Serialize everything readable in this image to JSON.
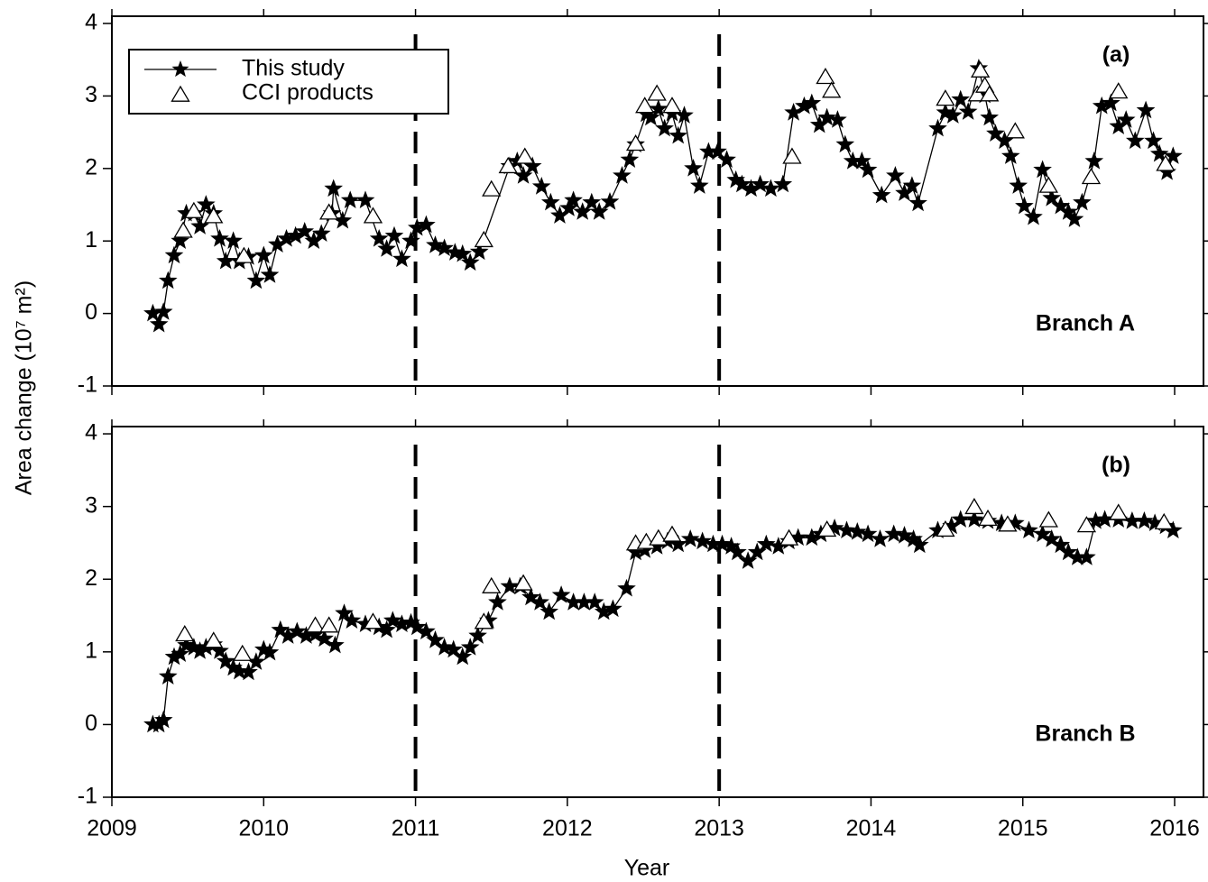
{
  "chart_data": [
    {
      "type": "line",
      "panel_label": "(a)",
      "annotation": "Branch A",
      "ylabel": "Area change (10⁷ m²)",
      "xlim": [
        2009,
        2016.19
      ],
      "xticks": [
        2009,
        2010,
        2011,
        2012,
        2013,
        2014,
        2015,
        2016
      ],
      "ylim": [
        -1,
        4.1
      ],
      "yticks": [
        -1,
        0,
        1,
        2,
        3,
        4
      ],
      "vlines": [
        2011,
        2013
      ],
      "legend": "upper left",
      "series": [
        {
          "name": "This study",
          "color": "#000000",
          "marker": "star",
          "linestyle": "solid",
          "x": [
            2009.27,
            2009.31,
            2009.34,
            2009.37,
            2009.41,
            2009.45,
            2009.49,
            2009.54,
            2009.58,
            2009.62,
            2009.67,
            2009.71,
            2009.75,
            2009.8,
            2009.84,
            2009.9,
            2009.95,
            2010.0,
            2010.04,
            2010.09,
            2010.15,
            2010.21,
            2010.27,
            2010.33,
            2010.38,
            2010.45,
            2010.46,
            2010.52,
            2010.57,
            2010.67,
            2010.76,
            2010.81,
            2010.86,
            2010.91,
            2010.97,
            2011.01,
            2011.07,
            2011.13,
            2011.19,
            2011.26,
            2011.31,
            2011.36,
            2011.42,
            2011.62,
            2011.67,
            2011.71,
            2011.77,
            2011.83,
            2011.89,
            2011.95,
            2012.01,
            2012.04,
            2012.1,
            2012.16,
            2012.21,
            2012.28,
            2012.36,
            2012.41,
            2012.45,
            2012.52,
            2012.55,
            2012.6,
            2012.64,
            2012.69,
            2012.73,
            2012.77,
            2012.83,
            2012.87,
            2012.93,
            2012.99,
            2013.05,
            2013.11,
            2013.15,
            2013.21,
            2013.27,
            2013.34,
            2013.42,
            2013.49,
            2013.56,
            2013.61,
            2013.66,
            2013.71,
            2013.78,
            2013.83,
            2013.88,
            2013.94,
            2013.98,
            2014.07,
            2014.16,
            2014.22,
            2014.27,
            2014.31,
            2014.44,
            2014.49,
            2014.54,
            2014.59,
            2014.64,
            2014.71,
            2014.75,
            2014.78,
            2014.82,
            2014.88,
            2014.92,
            2014.97,
            2015.01,
            2015.07,
            2015.13,
            2015.19,
            2015.25,
            2015.3,
            2015.34,
            2015.39,
            2015.47,
            2015.52,
            2015.58,
            2015.63,
            2015.68,
            2015.74,
            2015.81,
            2015.86,
            2015.9,
            2015.95,
            2015.99
          ],
          "values": [
            0,
            -0.15,
            0.02,
            0.45,
            0.8,
            1.0,
            1.38,
            1.38,
            1.2,
            1.5,
            1.38,
            1.03,
            0.72,
            1.0,
            0.72,
            0.78,
            0.45,
            0.8,
            0.53,
            0.95,
            1.03,
            1.07,
            1.13,
            1.0,
            1.1,
            1.38,
            1.72,
            1.28,
            1.56,
            1.56,
            1.03,
            0.89,
            1.07,
            0.75,
            1.0,
            1.18,
            1.22,
            0.94,
            0.9,
            0.84,
            0.82,
            0.7,
            0.85,
            2.03,
            2.1,
            1.9,
            2.03,
            1.75,
            1.53,
            1.35,
            1.45,
            1.56,
            1.4,
            1.53,
            1.4,
            1.54,
            1.9,
            2.12,
            2.33,
            2.75,
            2.7,
            2.82,
            2.55,
            2.76,
            2.45,
            2.73,
            2.0,
            1.76,
            2.23,
            2.23,
            2.12,
            1.84,
            1.78,
            1.72,
            1.78,
            1.72,
            1.78,
            2.77,
            2.86,
            2.9,
            2.6,
            2.7,
            2.67,
            2.33,
            2.1,
            2.1,
            1.98,
            1.63,
            1.9,
            1.66,
            1.76,
            1.52,
            2.55,
            2.77,
            2.73,
            2.95,
            2.78,
            3.38,
            3.01,
            2.7,
            2.48,
            2.38,
            2.17,
            1.76,
            1.48,
            1.33,
            1.98,
            1.59,
            1.48,
            1.4,
            1.3,
            1.53,
            2.1,
            2.86,
            2.9,
            2.58,
            2.67,
            2.38,
            2.8,
            2.38,
            2.2,
            1.95,
            2.17
          ]
        },
        {
          "name": "CCI products",
          "color": "#000000",
          "marker": "triangle",
          "linestyle": "none",
          "x": [
            2009.47,
            2009.54,
            2009.67,
            2009.87,
            2010.43,
            2010.72,
            2011.45,
            2011.5,
            2011.61,
            2011.72,
            2012.45,
            2012.51,
            2012.59,
            2012.69,
            2013.48,
            2013.7,
            2013.74,
            2014.49,
            2014.7,
            2014.72,
            2014.75,
            2014.78,
            2014.95,
            2015.17,
            2015.45,
            2015.63,
            2015.94
          ],
          "values": [
            1.13,
            1.4,
            1.33,
            0.78,
            1.38,
            1.33,
            1.0,
            1.7,
            2.02,
            2.15,
            2.33,
            2.85,
            3.02,
            2.85,
            2.15,
            3.25,
            3.06,
            2.95,
            3.01,
            3.34,
            3.13,
            3.01,
            2.5,
            1.75,
            1.87,
            3.05,
            2.05
          ]
        }
      ]
    },
    {
      "type": "line",
      "panel_label": "(b)",
      "annotation": "Branch B",
      "xlabel": "Year",
      "xlim": [
        2009,
        2016.19
      ],
      "xticks": [
        2009,
        2010,
        2011,
        2012,
        2013,
        2014,
        2015,
        2016
      ],
      "ylim": [
        -1,
        4.1
      ],
      "yticks": [
        -1,
        0,
        1,
        2,
        3,
        4
      ],
      "vlines": [
        2011,
        2013
      ],
      "series": [
        {
          "color": "#000000",
          "marker": "star",
          "linestyle": "solid",
          "x": [
            2009.27,
            2009.31,
            2009.34,
            2009.37,
            2009.41,
            2009.45,
            2009.49,
            2009.54,
            2009.58,
            2009.62,
            2009.67,
            2009.71,
            2009.75,
            2009.8,
            2009.84,
            2009.9,
            2009.95,
            2010.0,
            2010.04,
            2010.11,
            2010.16,
            2010.22,
            2010.28,
            2010.34,
            2010.4,
            2010.47,
            2010.53,
            2010.58,
            2010.67,
            2010.76,
            2010.81,
            2010.85,
            2010.91,
            2010.97,
            2011.01,
            2011.07,
            2011.13,
            2011.19,
            2011.25,
            2011.31,
            2011.36,
            2011.41,
            2011.48,
            2011.54,
            2011.62,
            2011.69,
            2011.76,
            2011.82,
            2011.88,
            2011.96,
            2012.04,
            2012.11,
            2012.18,
            2012.24,
            2012.3,
            2012.39,
            2012.45,
            2012.51,
            2012.59,
            2012.66,
            2012.73,
            2012.81,
            2012.89,
            2012.96,
            2013.02,
            2013.08,
            2013.12,
            2013.19,
            2013.25,
            2013.31,
            2013.39,
            2013.46,
            2013.52,
            2013.61,
            2013.67,
            2013.76,
            2013.84,
            2013.91,
            2013.98,
            2014.06,
            2014.15,
            2014.22,
            2014.28,
            2014.32,
            2014.44,
            2014.53,
            2014.59,
            2014.68,
            2014.77,
            2014.86,
            2014.95,
            2015.04,
            2015.13,
            2015.19,
            2015.25,
            2015.3,
            2015.36,
            2015.42,
            2015.48,
            2015.54,
            2015.63,
            2015.72,
            2015.8,
            2015.87,
            2015.94,
            2015.99
          ],
          "values": [
            0,
            0,
            0.06,
            0.66,
            0.93,
            0.97,
            1.09,
            1.06,
            1.01,
            1.06,
            1.1,
            1.01,
            0.87,
            0.78,
            0.73,
            0.72,
            0.86,
            1.03,
            0.99,
            1.3,
            1.22,
            1.28,
            1.22,
            1.24,
            1.18,
            1.09,
            1.53,
            1.43,
            1.38,
            1.34,
            1.3,
            1.43,
            1.38,
            1.4,
            1.34,
            1.28,
            1.16,
            1.06,
            1.03,
            0.93,
            1.06,
            1.22,
            1.43,
            1.68,
            1.9,
            1.9,
            1.75,
            1.68,
            1.55,
            1.78,
            1.68,
            1.68,
            1.68,
            1.55,
            1.59,
            1.87,
            2.37,
            2.4,
            2.45,
            2.52,
            2.48,
            2.55,
            2.52,
            2.48,
            2.48,
            2.45,
            2.37,
            2.25,
            2.37,
            2.48,
            2.45,
            2.52,
            2.57,
            2.57,
            2.62,
            2.7,
            2.67,
            2.65,
            2.62,
            2.55,
            2.62,
            2.6,
            2.55,
            2.47,
            2.67,
            2.73,
            2.82,
            2.82,
            2.8,
            2.77,
            2.77,
            2.67,
            2.62,
            2.55,
            2.47,
            2.37,
            2.3,
            2.3,
            2.8,
            2.82,
            2.82,
            2.8,
            2.8,
            2.77,
            2.73,
            2.67
          ]
        },
        {
          "color": "#000000",
          "marker": "triangle",
          "linestyle": "none",
          "x": [
            2009.48,
            2009.67,
            2009.86,
            2010.34,
            2010.43,
            2010.72,
            2011.45,
            2011.5,
            2011.71,
            2012.45,
            2012.52,
            2012.6,
            2012.69,
            2013.46,
            2013.71,
            2014.49,
            2014.68,
            2014.77,
            2014.9,
            2015.17,
            2015.42,
            2015.63,
            2015.93
          ],
          "values": [
            1.23,
            1.14,
            0.96,
            1.35,
            1.35,
            1.4,
            1.4,
            1.89,
            1.93,
            2.48,
            2.5,
            2.55,
            2.6,
            2.55,
            2.67,
            2.67,
            2.98,
            2.82,
            2.74,
            2.8,
            2.73,
            2.9,
            2.77
          ]
        }
      ]
    }
  ]
}
